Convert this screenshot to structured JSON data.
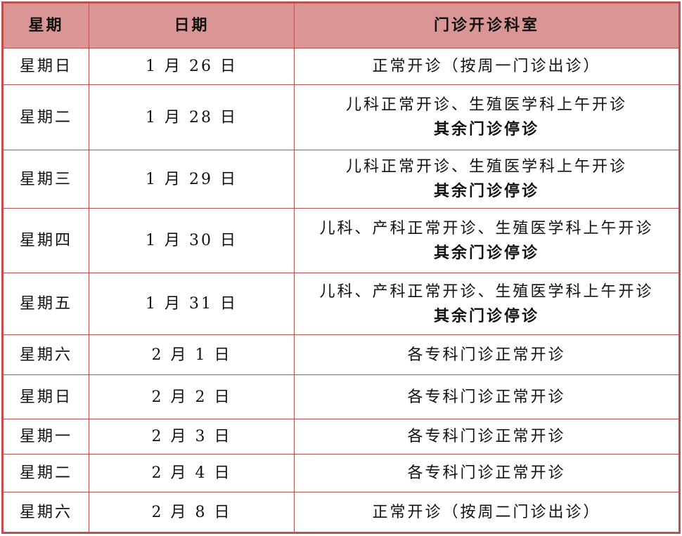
{
  "header": {
    "weekday": "星期",
    "date": "日期",
    "clinics": "门诊开诊科室"
  },
  "colors": {
    "header_bg": "#d99694",
    "border": "#c0504d"
  },
  "rows": [
    {
      "weekday": "星期日",
      "date": "1 月 26 日",
      "line1": "正常开诊（按周一门诊出诊）",
      "line2": ""
    },
    {
      "weekday": "星期二",
      "date": "1 月 28 日",
      "line1": "儿科正常开诊、生殖医学科上午开诊",
      "line2": "其余门诊停诊"
    },
    {
      "weekday": "星期三",
      "date": "1 月 29 日",
      "line1": "儿科正常开诊、生殖医学科上午开诊",
      "line2": "其余门诊停诊"
    },
    {
      "weekday": "星期四",
      "date": "1 月 30 日",
      "line1": "儿科、产科正常开诊、生殖医学科上午开诊",
      "line2": "其余门诊停诊"
    },
    {
      "weekday": "星期五",
      "date": "1 月 31 日",
      "line1": "儿科、产科正常开诊、生殖医学科上午开诊",
      "line2": "其余门诊停诊"
    },
    {
      "weekday": "星期六",
      "date": "2 月 1 日",
      "line1": "各专科门诊正常开诊",
      "line2": ""
    },
    {
      "weekday": "星期日",
      "date": "2 月 2 日",
      "line1": "各专科门诊正常开诊",
      "line2": ""
    },
    {
      "weekday": "星期一",
      "date": "2 月 3 日",
      "line1": "各专科门诊正常开诊",
      "line2": ""
    },
    {
      "weekday": "星期二",
      "date": "2 月 4 日",
      "line1": "各专科门诊正常开诊",
      "line2": ""
    },
    {
      "weekday": "星期六",
      "date": "2 月 8 日",
      "line1": "正常开诊（按周二门诊出诊）",
      "line2": ""
    }
  ]
}
